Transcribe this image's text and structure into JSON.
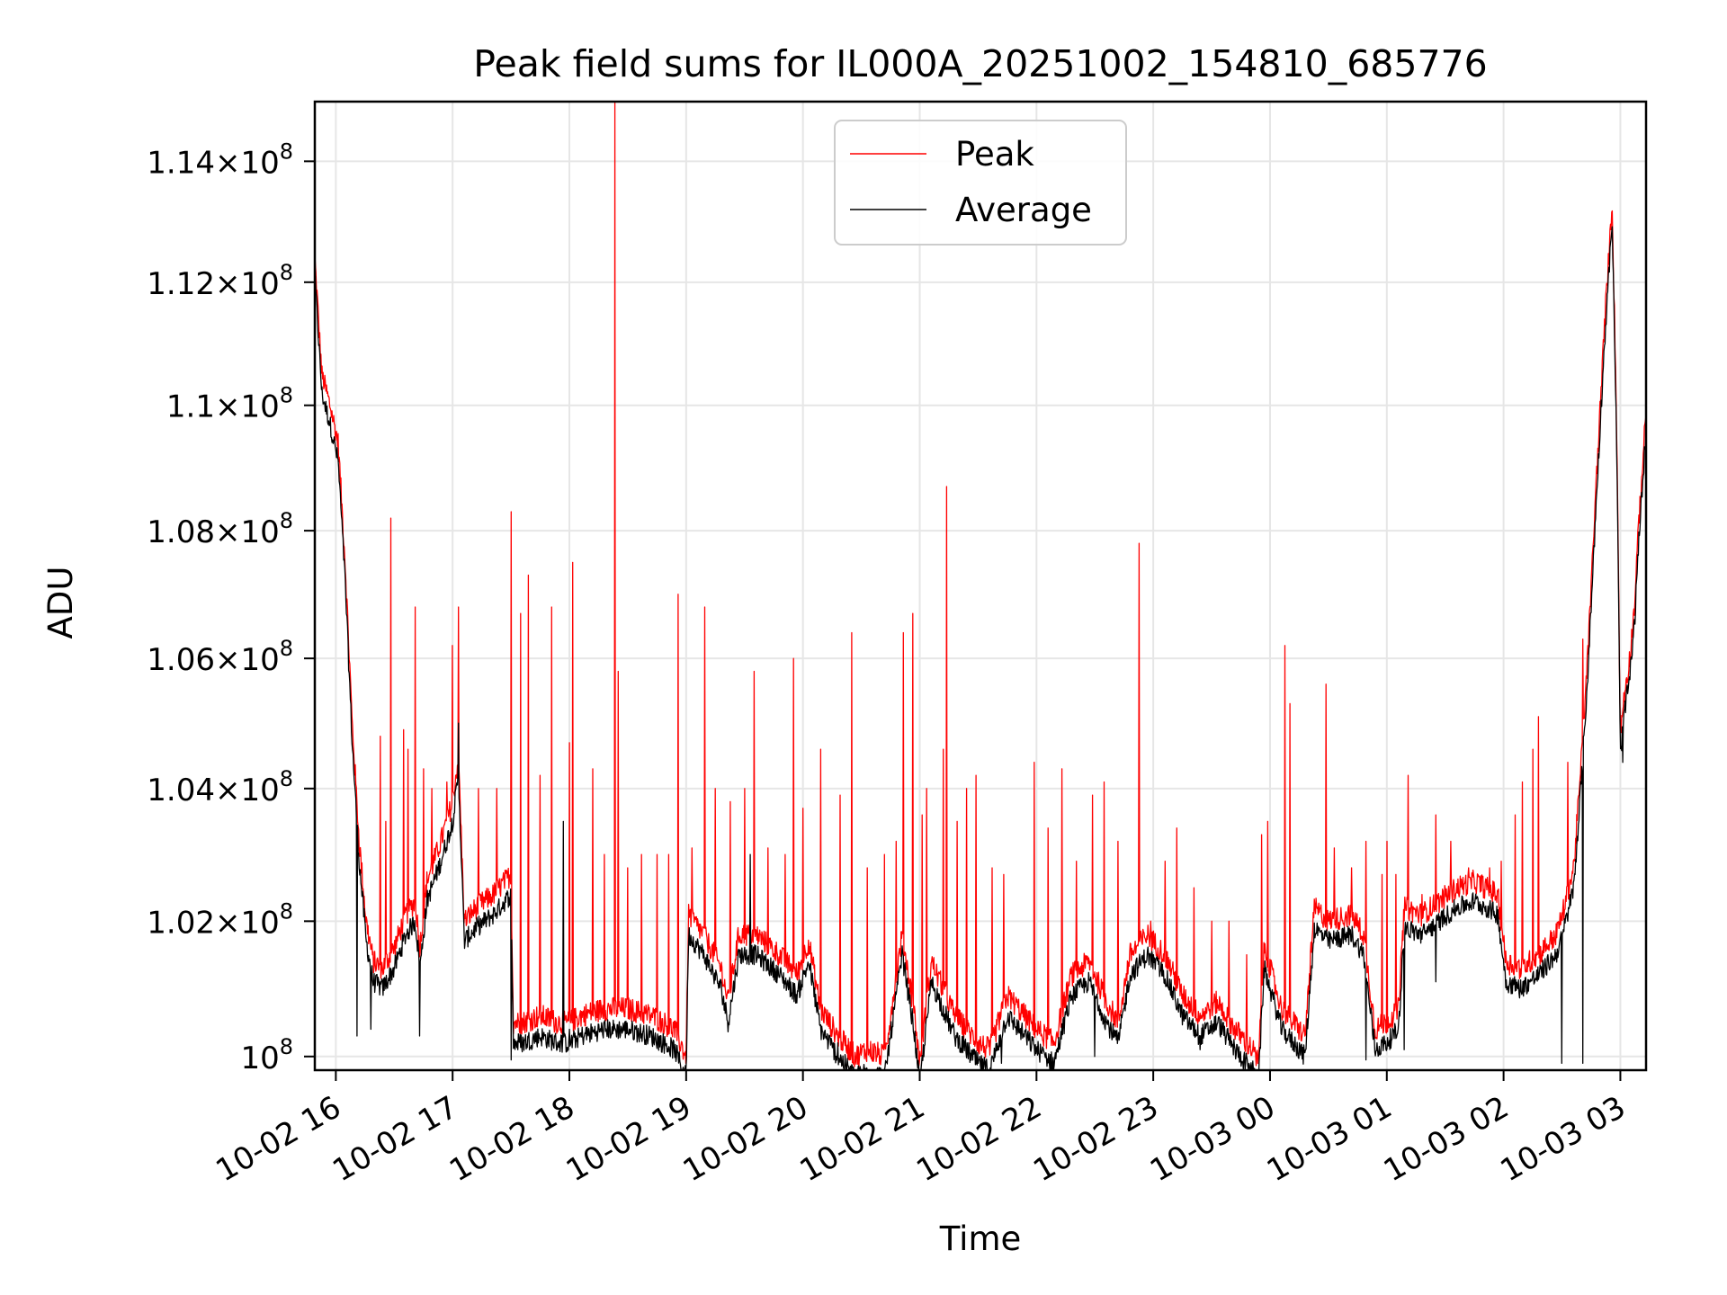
{
  "chart_data": {
    "type": "line",
    "title": "Peak field sums for IL000A_20251002_154810_685776",
    "xlabel": "Time",
    "ylabel": "ADU",
    "y_scale": "log",
    "grid": true,
    "legend_position": "upper-center",
    "xlim_hours": [
      15.82,
      27.22
    ],
    "ylim": [
      99800000,
      115000000
    ],
    "x_ticks": [
      {
        "hour": 16,
        "label": "10-02 16"
      },
      {
        "hour": 17,
        "label": "10-02 17"
      },
      {
        "hour": 18,
        "label": "10-02 18"
      },
      {
        "hour": 19,
        "label": "10-02 19"
      },
      {
        "hour": 20,
        "label": "10-02 20"
      },
      {
        "hour": 21,
        "label": "10-02 21"
      },
      {
        "hour": 22,
        "label": "10-02 22"
      },
      {
        "hour": 23,
        "label": "10-02 23"
      },
      {
        "hour": 24,
        "label": "10-03 00"
      },
      {
        "hour": 25,
        "label": "10-03 01"
      },
      {
        "hour": 26,
        "label": "10-03 02"
      },
      {
        "hour": 27,
        "label": "10-03 03"
      }
    ],
    "y_ticks": [
      {
        "value": 100000000,
        "mantissa": "",
        "exp": "8"
      },
      {
        "value": 102000000,
        "mantissa": "1.02",
        "exp": "8"
      },
      {
        "value": 104000000,
        "mantissa": "1.04",
        "exp": "8"
      },
      {
        "value": 106000000,
        "mantissa": "1.06",
        "exp": "8"
      },
      {
        "value": 108000000,
        "mantissa": "1.08",
        "exp": "8"
      },
      {
        "value": 110000000,
        "mantissa": "1.1",
        "exp": "8"
      },
      {
        "value": 112000000,
        "mantissa": "1.12",
        "exp": "8"
      },
      {
        "value": 114000000,
        "mantissa": "1.14",
        "exp": "8"
      }
    ],
    "series": [
      {
        "name": "Peak",
        "color": "#ff0000",
        "description": "Peak field sum per frame (approximate trace)",
        "baseline_points": [
          [
            15.82,
            112.4
          ],
          [
            15.88,
            110.5
          ],
          [
            15.95,
            110.0
          ],
          [
            16.02,
            109.4
          ],
          [
            16.08,
            107.5
          ],
          [
            16.14,
            105.0
          ],
          [
            16.2,
            103.2
          ],
          [
            16.26,
            102.0
          ],
          [
            16.32,
            101.4
          ],
          [
            16.4,
            101.3
          ],
          [
            16.5,
            101.6
          ],
          [
            16.6,
            102.1
          ],
          [
            16.68,
            102.3
          ],
          [
            16.72,
            101.6
          ],
          [
            16.78,
            102.6
          ],
          [
            16.9,
            103.2
          ],
          [
            17.0,
            103.8
          ],
          [
            17.05,
            104.5
          ],
          [
            17.1,
            102.0
          ],
          [
            17.2,
            102.2
          ],
          [
            17.35,
            102.4
          ],
          [
            17.5,
            102.7
          ],
          [
            17.52,
            100.5
          ],
          [
            17.6,
            100.5
          ],
          [
            17.75,
            100.6
          ],
          [
            17.9,
            100.5
          ],
          [
            18.0,
            100.5
          ],
          [
            18.1,
            100.6
          ],
          [
            18.3,
            100.7
          ],
          [
            18.5,
            100.7
          ],
          [
            18.7,
            100.6
          ],
          [
            18.9,
            100.4
          ],
          [
            19.0,
            100.0
          ],
          [
            19.02,
            102.1
          ],
          [
            19.15,
            101.8
          ],
          [
            19.3,
            101.3
          ],
          [
            19.36,
            100.8
          ],
          [
            19.45,
            101.8
          ],
          [
            19.6,
            101.8
          ],
          [
            19.8,
            101.5
          ],
          [
            19.95,
            101.2
          ],
          [
            20.05,
            101.7
          ],
          [
            20.15,
            100.7
          ],
          [
            20.3,
            100.3
          ],
          [
            20.45,
            100.0
          ],
          [
            20.55,
            100.1
          ],
          [
            20.7,
            100.0
          ],
          [
            20.85,
            101.8
          ],
          [
            20.95,
            100.7
          ],
          [
            21.0,
            99.9
          ],
          [
            21.1,
            101.4
          ],
          [
            21.3,
            100.6
          ],
          [
            21.5,
            100.2
          ],
          [
            21.6,
            100.1
          ],
          [
            21.75,
            100.9
          ],
          [
            21.9,
            100.6
          ],
          [
            22.0,
            100.4
          ],
          [
            22.15,
            100.2
          ],
          [
            22.3,
            101.2
          ],
          [
            22.45,
            101.4
          ],
          [
            22.6,
            100.8
          ],
          [
            22.7,
            100.5
          ],
          [
            22.8,
            101.5
          ],
          [
            22.95,
            101.8
          ],
          [
            23.1,
            101.5
          ],
          [
            23.25,
            100.9
          ],
          [
            23.4,
            100.6
          ],
          [
            23.55,
            100.8
          ],
          [
            23.7,
            100.4
          ],
          [
            23.85,
            100.1
          ],
          [
            23.9,
            99.9
          ],
          [
            23.95,
            101.6
          ],
          [
            24.1,
            100.7
          ],
          [
            24.2,
            100.5
          ],
          [
            24.3,
            100.3
          ],
          [
            24.38,
            102.2
          ],
          [
            24.5,
            102.0
          ],
          [
            24.7,
            102.1
          ],
          [
            24.8,
            101.8
          ],
          [
            24.9,
            100.4
          ],
          [
            25.0,
            100.5
          ],
          [
            25.1,
            100.7
          ],
          [
            25.15,
            102.2
          ],
          [
            25.3,
            102.1
          ],
          [
            25.45,
            102.3
          ],
          [
            25.6,
            102.5
          ],
          [
            25.75,
            102.6
          ],
          [
            25.95,
            102.4
          ],
          [
            26.02,
            101.4
          ],
          [
            26.15,
            101.3
          ],
          [
            26.3,
            101.5
          ],
          [
            26.45,
            101.8
          ],
          [
            26.52,
            102.2
          ],
          [
            26.6,
            102.8
          ],
          [
            26.65,
            104.0
          ],
          [
            26.72,
            106.0
          ],
          [
            26.8,
            109.0
          ],
          [
            26.87,
            111.5
          ],
          [
            26.93,
            113.3
          ],
          [
            26.97,
            109.5
          ],
          [
            27.0,
            104.8
          ],
          [
            27.03,
            105.4
          ],
          [
            27.08,
            106.0
          ],
          [
            27.12,
            106.8
          ],
          [
            27.16,
            108.2
          ],
          [
            27.22,
            109.9
          ]
        ],
        "spikes": [
          [
            16.47,
            108.2
          ],
          [
            16.38,
            104.8
          ],
          [
            16.43,
            103.5
          ],
          [
            16.58,
            104.9
          ],
          [
            16.62,
            104.6
          ],
          [
            16.68,
            106.8
          ],
          [
            16.75,
            104.3
          ],
          [
            16.82,
            104.0
          ],
          [
            16.95,
            104.1
          ],
          [
            17.0,
            106.2
          ],
          [
            17.05,
            106.8
          ],
          [
            17.22,
            104.0
          ],
          [
            17.38,
            104.0
          ],
          [
            17.5,
            108.3
          ],
          [
            17.58,
            106.7
          ],
          [
            17.65,
            107.3
          ],
          [
            17.75,
            104.2
          ],
          [
            17.85,
            106.8
          ],
          [
            18.0,
            104.7
          ],
          [
            18.03,
            107.5
          ],
          [
            18.2,
            104.3
          ],
          [
            18.3,
            103.0
          ],
          [
            18.39,
            115.0
          ],
          [
            18.42,
            105.8
          ],
          [
            18.5,
            102.8
          ],
          [
            18.62,
            103.0
          ],
          [
            18.75,
            103.0
          ],
          [
            18.85,
            103.0
          ],
          [
            18.93,
            107.0
          ],
          [
            19.05,
            103.1
          ],
          [
            19.16,
            106.8
          ],
          [
            19.25,
            104.0
          ],
          [
            19.38,
            103.8
          ],
          [
            19.5,
            104.0
          ],
          [
            19.58,
            105.8
          ],
          [
            19.7,
            103.1
          ],
          [
            19.85,
            103.0
          ],
          [
            19.92,
            106.0
          ],
          [
            20.0,
            103.7
          ],
          [
            20.15,
            104.6
          ],
          [
            20.32,
            103.9
          ],
          [
            20.42,
            106.4
          ],
          [
            20.55,
            102.8
          ],
          [
            20.7,
            103.0
          ],
          [
            20.8,
            103.2
          ],
          [
            20.86,
            106.4
          ],
          [
            20.94,
            106.7
          ],
          [
            21.02,
            103.6
          ],
          [
            21.06,
            104.0
          ],
          [
            21.2,
            104.6
          ],
          [
            21.23,
            108.7
          ],
          [
            21.32,
            103.5
          ],
          [
            21.4,
            104.0
          ],
          [
            21.48,
            104.2
          ],
          [
            21.62,
            102.8
          ],
          [
            21.72,
            102.7
          ],
          [
            21.98,
            104.4
          ],
          [
            22.1,
            103.4
          ],
          [
            22.22,
            104.3
          ],
          [
            22.34,
            102.9
          ],
          [
            22.48,
            103.9
          ],
          [
            22.58,
            104.1
          ],
          [
            22.7,
            103.2
          ],
          [
            22.88,
            107.8
          ],
          [
            22.98,
            102.0
          ],
          [
            23.1,
            102.9
          ],
          [
            23.2,
            103.4
          ],
          [
            23.35,
            102.5
          ],
          [
            23.5,
            102.0
          ],
          [
            23.65,
            102.0
          ],
          [
            23.8,
            101.5
          ],
          [
            23.93,
            103.3
          ],
          [
            23.98,
            103.5
          ],
          [
            24.13,
            106.2
          ],
          [
            24.17,
            105.3
          ],
          [
            24.48,
            105.6
          ],
          [
            24.55,
            103.1
          ],
          [
            24.7,
            102.8
          ],
          [
            24.82,
            103.2
          ],
          [
            24.96,
            102.7
          ],
          [
            25.0,
            103.2
          ],
          [
            25.08,
            102.7
          ],
          [
            25.18,
            104.2
          ],
          [
            25.3,
            102.4
          ],
          [
            25.42,
            103.6
          ],
          [
            25.55,
            103.2
          ],
          [
            25.7,
            102.8
          ],
          [
            25.88,
            102.8
          ],
          [
            25.98,
            102.9
          ],
          [
            26.1,
            103.6
          ],
          [
            26.16,
            104.1
          ],
          [
            26.25,
            104.6
          ],
          [
            26.3,
            105.1
          ],
          [
            26.55,
            104.4
          ],
          [
            26.68,
            106.3
          ],
          [
            26.72,
            106.2
          ]
        ]
      },
      {
        "name": "Average",
        "color": "#000000",
        "description": "Average field sum per frame (approximate trace)",
        "offset_below_peak_millions": 0.3,
        "dips": [
          [
            16.18,
            100.3
          ],
          [
            16.3,
            100.4
          ],
          [
            16.72,
            100.3
          ],
          [
            17.5,
            99.95
          ],
          [
            18.0,
            100.4
          ],
          [
            19.0,
            99.8
          ],
          [
            20.3,
            100.2
          ],
          [
            20.98,
            99.9
          ],
          [
            21.7,
            99.9
          ],
          [
            22.5,
            100.0
          ],
          [
            23.4,
            100.1
          ],
          [
            23.82,
            99.9
          ],
          [
            24.25,
            100.2
          ],
          [
            24.82,
            99.95
          ],
          [
            25.15,
            100.1
          ],
          [
            25.42,
            101.1
          ],
          [
            26.5,
            99.9
          ],
          [
            26.68,
            99.9
          ],
          [
            27.02,
            104.4
          ]
        ],
        "spikes": [
          [
            17.05,
            105.0
          ],
          [
            17.95,
            103.5
          ],
          [
            19.55,
            103.0
          ]
        ]
      }
    ]
  }
}
